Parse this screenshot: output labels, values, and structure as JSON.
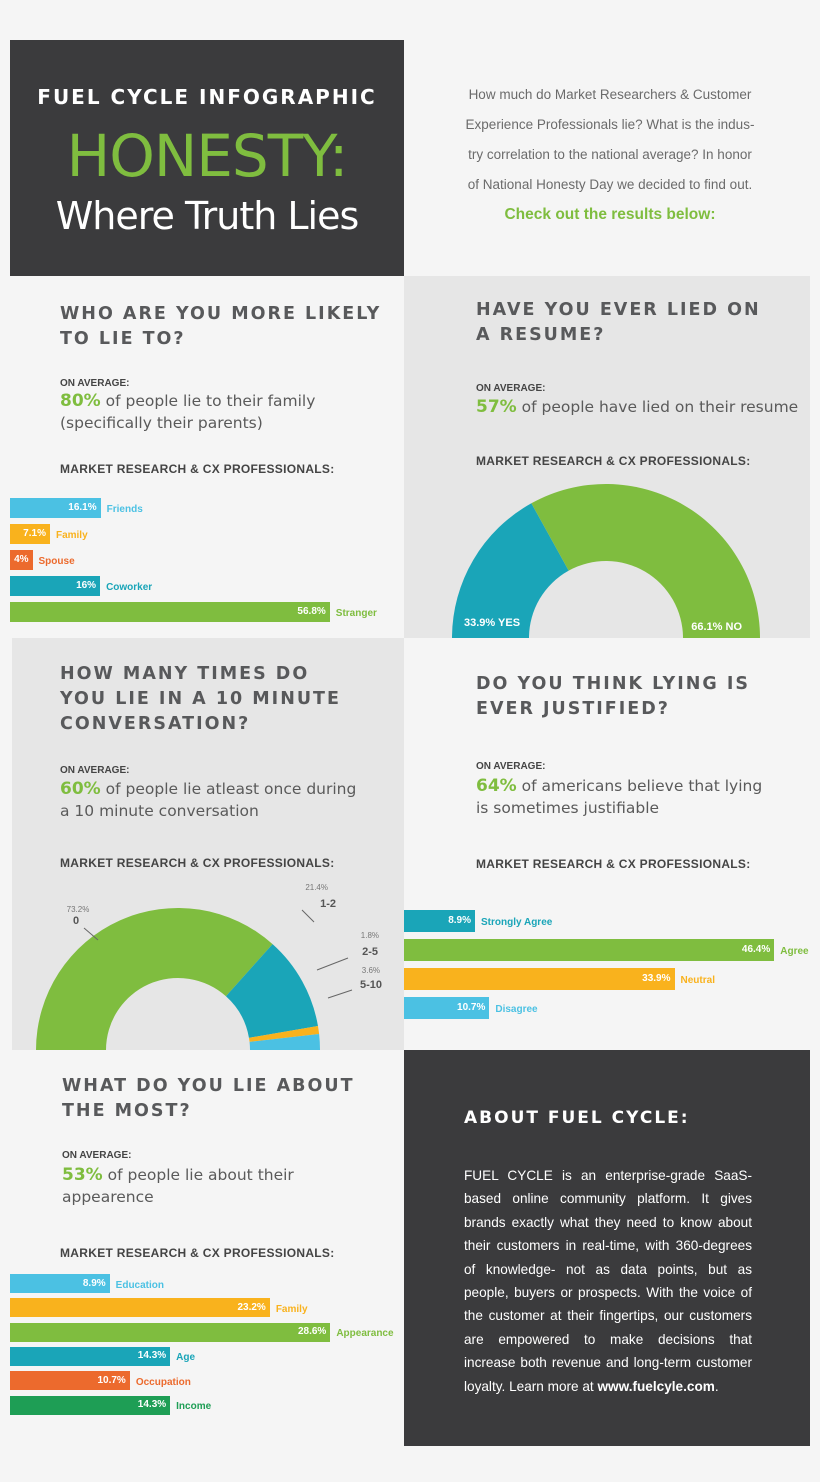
{
  "header": {
    "kicker": "FUEL CYCLE INFOGRAPHIC",
    "title": "HONESTY:",
    "subtitle": "Where Truth Lies",
    "intro_lines": [
      "How much do Market Researchers & Customer",
      "Experience Professionals lie? What is the indus-",
      "try correlation to the national average? In honor",
      "of National Honesty Day we decided to find out."
    ],
    "cta": "Check out the results below:"
  },
  "sections": {
    "likely": {
      "question": "WHO ARE YOU MORE LIKELY\nTO LIE TO?",
      "on_average_label": "ON AVERAGE:",
      "stat_pct": "80%",
      "stat_line1": " of people lie to their family",
      "stat_line2": "(specifically their parents)",
      "mr_label": "MARKET RESEARCH & CX PROFESSIONALS:"
    },
    "resume": {
      "question": "HAVE YOU EVER LIED ON\nA RESUME?",
      "on_average_label": "ON AVERAGE:",
      "stat_pct": "57%",
      "stat_line1": " of people have lied on their resume",
      "mr_label": "MARKET RESEARCH & CX PROFESSIONALS:"
    },
    "times": {
      "question": "HOW MANY TIMES DO\nYOU LIE IN A 10 MINUTE\nCONVERSATION?",
      "on_average_label": "ON AVERAGE:",
      "stat_pct": "60%",
      "stat_line1": " of people lie atleast once during",
      "stat_line2": "a 10 minute conversation",
      "mr_label": "MARKET RESEARCH & CX PROFESSIONALS:"
    },
    "justified": {
      "question": "DO YOU THINK LYING IS\nEVER JUSTIFIED?",
      "on_average_label": "ON AVERAGE:",
      "stat_pct": "64%",
      "stat_line1": " of americans believe that lying",
      "stat_line2": "is sometimes justifiable",
      "mr_label": "MARKET RESEARCH & CX PROFESSIONALS:"
    },
    "about_what": {
      "question": "WHAT DO YOU LIE ABOUT\nTHE MOST?",
      "on_average_label": "ON AVERAGE:",
      "stat_pct": "53%",
      "stat_line1": " of people lie about their",
      "stat_line2": "appearence",
      "mr_label": "MARKET RESEARCH & CX PROFESSIONALS:"
    }
  },
  "about": {
    "heading": "ABOUT FUEL CYCLE:",
    "body": "FUEL CYCLE is an enterprise-grade SaaS-based online community platform. It gives brands exactly what they need to know about their customers in real-time, with 360-degrees of knowledge- not as data points, but as people, buyers or prospects. With the voice of the customer at their fingertips, our customers are empowered to make decisions that increase both revenue and long-term customer loyalty. Learn more at ",
    "link": "www.fuelcyle.com",
    "end": "."
  },
  "colors": {
    "green": "#7fbd3f",
    "teal": "#1aa5b8",
    "sky": "#4bc1e3",
    "yellow": "#f9b21d",
    "orange": "#ec6a2d",
    "darkgreen": "#1e9e55",
    "dark": "#3b3b3d"
  },
  "chart_data": [
    {
      "type": "bar",
      "categories": [
        "Friends",
        "Family",
        "Spouse",
        "Coworker",
        "Stranger"
      ],
      "labels": [
        "16.1%",
        "7.1%",
        "4%",
        "16%",
        "56.8%"
      ],
      "values": [
        16.1,
        7.1,
        4,
        16,
        56.8
      ],
      "colors": [
        "#4bc1e3",
        "#f9b21d",
        "#ec6a2d",
        "#1aa5b8",
        "#7fbd3f"
      ],
      "title": ""
    },
    {
      "type": "pie",
      "categories": [
        "YES",
        "NO"
      ],
      "labels": [
        "33.9% YES",
        "66.1% NO"
      ],
      "values": [
        33.9,
        66.1
      ],
      "colors": [
        "#1aa5b8",
        "#7fbd3f"
      ],
      "title": ""
    },
    {
      "type": "pie",
      "categories": [
        "0",
        "1-2",
        "2-5",
        "5-10"
      ],
      "labels": [
        "73.2%",
        "21.4%",
        "1.8%",
        "3.6%"
      ],
      "values": [
        73.2,
        21.4,
        1.8,
        3.6
      ],
      "colors": [
        "#7fbd3f",
        "#1aa5b8",
        "#f9b21d",
        "#4bc1e3"
      ],
      "title": ""
    },
    {
      "type": "bar",
      "categories": [
        "Strongly Agree",
        "Agree",
        "Neutral",
        "Disagree"
      ],
      "labels": [
        "8.9%",
        "46.4%",
        "33.9%",
        "10.7%"
      ],
      "values": [
        8.9,
        46.4,
        33.9,
        10.7
      ],
      "colors": [
        "#1aa5b8",
        "#7fbd3f",
        "#f9b21d",
        "#4bc1e3"
      ],
      "title": ""
    },
    {
      "type": "bar",
      "categories": [
        "Education",
        "Family",
        "Appearance",
        "Age",
        "Occupation",
        "Income"
      ],
      "labels": [
        "8.9%",
        "23.2%",
        "28.6%",
        "14.3%",
        "10.7%",
        "14.3%"
      ],
      "values": [
        8.9,
        23.2,
        28.6,
        14.3,
        10.7,
        14.3
      ],
      "colors": [
        "#4bc1e3",
        "#f9b21d",
        "#7fbd3f",
        "#1aa5b8",
        "#ec6a2d",
        "#1e9e55"
      ],
      "title": ""
    }
  ]
}
